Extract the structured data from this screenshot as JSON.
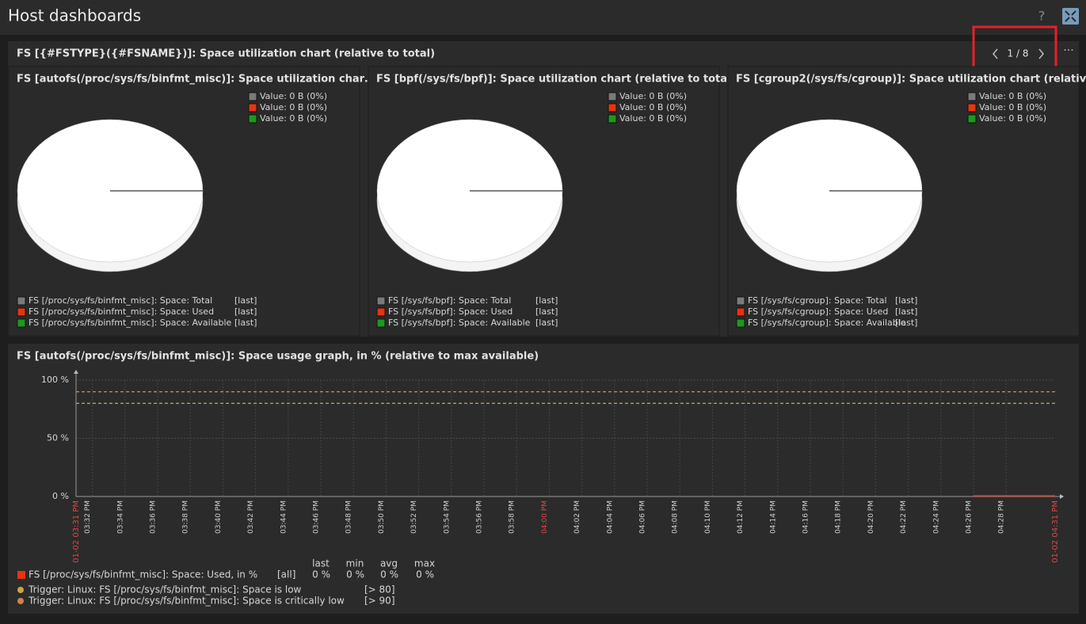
{
  "header": {
    "title": "Host dashboards",
    "help": "?"
  },
  "widget": {
    "title": "FS [{#FSTYPE}({#FSNAME})]: Space utilization chart (relative to total)",
    "pager": "1 / 8"
  },
  "pies": [
    {
      "title": "FS [autofs(/proc/sys/fs/binfmt_misc)]: Space utilization char…",
      "values": [
        {
          "label": "Value: 0 B (0%)",
          "color": "#7a7a7a"
        },
        {
          "label": "Value: 0 B (0%)",
          "color": "#e8330f"
        },
        {
          "label": "Value: 0 B (0%)",
          "color": "#1b9a1b"
        }
      ],
      "legend": [
        {
          "name": "FS [/proc/sys/fs/binfmt_misc]: Space: Total",
          "func": "[last]",
          "color": "#7a7a7a"
        },
        {
          "name": "FS [/proc/sys/fs/binfmt_misc]: Space: Used",
          "func": "[last]",
          "color": "#e8330f"
        },
        {
          "name": "FS [/proc/sys/fs/binfmt_misc]: Space: Available",
          "func": "[last]",
          "color": "#1b9a1b"
        }
      ]
    },
    {
      "title": "FS [bpf(/sys/fs/bpf)]: Space utilization chart (relative to total)",
      "values": [
        {
          "label": "Value: 0 B (0%)",
          "color": "#7a7a7a"
        },
        {
          "label": "Value: 0 B (0%)",
          "color": "#e8330f"
        },
        {
          "label": "Value: 0 B (0%)",
          "color": "#1b9a1b"
        }
      ],
      "legend": [
        {
          "name": "FS [/sys/fs/bpf]: Space: Total",
          "func": "[last]",
          "color": "#7a7a7a"
        },
        {
          "name": "FS [/sys/fs/bpf]: Space: Used",
          "func": "[last]",
          "color": "#e8330f"
        },
        {
          "name": "FS [/sys/fs/bpf]: Space: Available",
          "func": "[last]",
          "color": "#1b9a1b"
        }
      ]
    },
    {
      "title": "FS [cgroup2(/sys/fs/cgroup)]: Space utilization chart (relativ…",
      "values": [
        {
          "label": "Value: 0 B (0%)",
          "color": "#7a7a7a"
        },
        {
          "label": "Value: 0 B (0%)",
          "color": "#e8330f"
        },
        {
          "label": "Value: 0 B (0%)",
          "color": "#1b9a1b"
        }
      ],
      "legend": [
        {
          "name": "FS [/sys/fs/cgroup]: Space: Total",
          "func": "[last]",
          "color": "#7a7a7a"
        },
        {
          "name": "FS [/sys/fs/cgroup]: Space: Used",
          "func": "[last]",
          "color": "#e8330f"
        },
        {
          "name": "FS [/sys/fs/cgroup]: Space: Available",
          "func": "[last]",
          "color": "#1b9a1b"
        }
      ]
    }
  ],
  "graph": {
    "title": "FS [autofs(/proc/sys/fs/binfmt_misc)]: Space usage graph, in % (relative to max available)",
    "ylim": [
      0,
      100
    ],
    "yticks": [
      {
        "value": 100,
        "label": "100 %"
      },
      {
        "value": 50,
        "label": "50 %"
      },
      {
        "value": 0,
        "label": "0 %"
      }
    ],
    "x_start": "01-02 03:31 PM",
    "x_end": "01-02 04:31 PM",
    "x_edge_color": "#e04545",
    "x_ticks": [
      {
        "label": "03:32 PM",
        "color": "#cfcfcf"
      },
      {
        "label": "03:34 PM",
        "color": "#cfcfcf"
      },
      {
        "label": "03:36 PM",
        "color": "#cfcfcf"
      },
      {
        "label": "03:38 PM",
        "color": "#cfcfcf"
      },
      {
        "label": "03:40 PM",
        "color": "#cfcfcf"
      },
      {
        "label": "03:42 PM",
        "color": "#cfcfcf"
      },
      {
        "label": "03:44 PM",
        "color": "#cfcfcf"
      },
      {
        "label": "03:46 PM",
        "color": "#cfcfcf"
      },
      {
        "label": "03:48 PM",
        "color": "#cfcfcf"
      },
      {
        "label": "03:50 PM",
        "color": "#cfcfcf"
      },
      {
        "label": "03:52 PM",
        "color": "#cfcfcf"
      },
      {
        "label": "03:54 PM",
        "color": "#cfcfcf"
      },
      {
        "label": "03:56 PM",
        "color": "#cfcfcf"
      },
      {
        "label": "03:58 PM",
        "color": "#cfcfcf"
      },
      {
        "label": "04:00 PM",
        "color": "#e04545"
      },
      {
        "label": "04:02 PM",
        "color": "#cfcfcf"
      },
      {
        "label": "04:04 PM",
        "color": "#cfcfcf"
      },
      {
        "label": "04:06 PM",
        "color": "#cfcfcf"
      },
      {
        "label": "04:08 PM",
        "color": "#cfcfcf"
      },
      {
        "label": "04:10 PM",
        "color": "#cfcfcf"
      },
      {
        "label": "04:12 PM",
        "color": "#cfcfcf"
      },
      {
        "label": "04:14 PM",
        "color": "#cfcfcf"
      },
      {
        "label": "04:16 PM",
        "color": "#cfcfcf"
      },
      {
        "label": "04:18 PM",
        "color": "#cfcfcf"
      },
      {
        "label": "04:20 PM",
        "color": "#cfcfcf"
      },
      {
        "label": "04:22 PM",
        "color": "#cfcfcf"
      },
      {
        "label": "04:24 PM",
        "color": "#cfcfcf"
      },
      {
        "label": "04:26 PM",
        "color": "#cfcfcf"
      },
      {
        "label": "04:28 PM",
        "color": "#cfcfcf"
      }
    ],
    "legend": {
      "columns": [
        "last",
        "min",
        "avg",
        "max"
      ],
      "series": [
        {
          "name": "FS [/proc/sys/fs/binfmt_misc]: Space: Used, in %",
          "color": "#e8330f",
          "func": "[all]",
          "stats": [
            "0 %",
            "0 %",
            "0 %",
            "0 %"
          ]
        }
      ],
      "triggers": [
        {
          "name": "Trigger: Linux: FS [/proc/sys/fs/binfmt_misc]: Space is low",
          "value": 80,
          "label": "[> 80]",
          "color": "#cfa53f"
        },
        {
          "name": "Trigger: Linux: FS [/proc/sys/fs/binfmt_misc]: Space is critically low",
          "value": 90,
          "label": "[> 90]",
          "color": "#d3804c"
        }
      ]
    }
  }
}
